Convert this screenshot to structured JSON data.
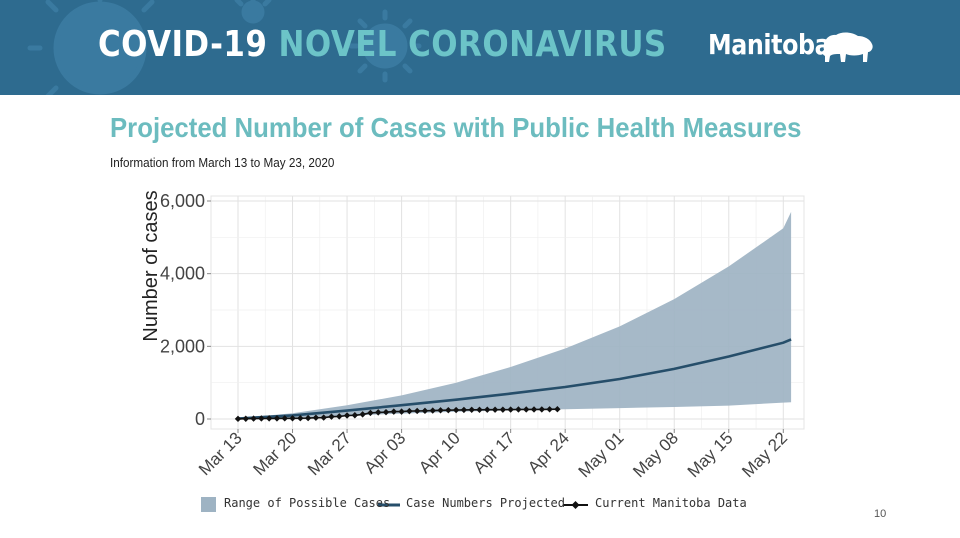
{
  "banner": {
    "title_part1": "COVID-19",
    "title_part2": "NOVEL CORONAVIRUS",
    "logo": "Manitoba",
    "logo_icon": "bison-icon",
    "colors": {
      "background": "#2e6b8f",
      "accent": "#6cc4c8"
    }
  },
  "page_number": "10",
  "chart_data": {
    "type": "area",
    "title": "Projected Number of Cases with Public Health Measures",
    "subtitle": "Information from March 13 to May 23, 2020",
    "ylabel": "Number of cases",
    "xlabel": "",
    "ylim": [
      -300,
      6000
    ],
    "yticks": [
      0,
      2000,
      4000,
      6000
    ],
    "ytick_labels": [
      "0",
      "2,000",
      "4,000",
      "6,000"
    ],
    "xticks": [
      0,
      7,
      14,
      21,
      28,
      35,
      42,
      49,
      56,
      63,
      70
    ],
    "xtick_labels": [
      "Mar 13",
      "Mar 20",
      "Mar 27",
      "Apr 03",
      "Apr 10",
      "Apr 17",
      "Apr 24",
      "May 01",
      "May 08",
      "May 15",
      "May 22"
    ],
    "x_days": [
      0,
      7,
      14,
      21,
      28,
      35,
      42,
      49,
      56,
      63,
      70,
      71
    ],
    "range": {
      "name": "Range of Possible Cases",
      "color": "#9eb3c3",
      "lower": [
        10,
        40,
        90,
        150,
        200,
        240,
        270,
        300,
        330,
        370,
        450,
        460
      ],
      "upper": [
        20,
        160,
        380,
        650,
        1000,
        1430,
        1940,
        2550,
        3300,
        4200,
        5250,
        5700
      ]
    },
    "projected": {
      "name": "Case Numbers Projected",
      "color": "#264e6a",
      "values": [
        15,
        100,
        230,
        380,
        530,
        700,
        880,
        1100,
        1380,
        1720,
        2100,
        2190
      ]
    },
    "current": {
      "name": "Current Manitoba Data",
      "color": "#111111",
      "x": [
        0,
        1,
        2,
        3,
        4,
        5,
        6,
        7,
        8,
        9,
        10,
        11,
        12,
        13,
        14,
        15,
        16,
        17,
        18,
        19,
        20,
        21,
        22,
        23,
        24,
        25,
        26,
        27,
        28,
        29,
        30,
        31,
        32,
        33,
        34,
        35,
        36,
        37,
        38,
        39,
        40,
        41
      ],
      "values": [
        4,
        7,
        11,
        15,
        17,
        17,
        18,
        20,
        21,
        25,
        35,
        39,
        64,
        72,
        96,
        103,
        127,
        167,
        182,
        188,
        203,
        203,
        217,
        221,
        225,
        232,
        240,
        243,
        246,
        250,
        253,
        254,
        255,
        256,
        257,
        259,
        262,
        263,
        263,
        264,
        267,
        270
      ]
    },
    "grid": true,
    "legend": "bottom"
  }
}
